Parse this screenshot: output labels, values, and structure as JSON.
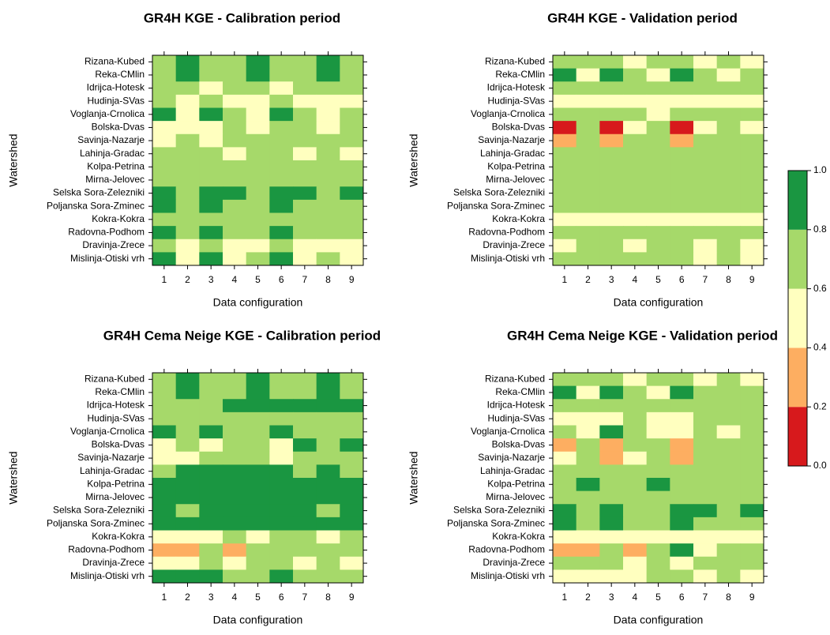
{
  "chart_data": [
    {
      "type": "heatmap",
      "title": "GR4H KGE - Calibration period",
      "x_label": "Data configuration",
      "y_label": "Watershed",
      "x": [
        1,
        2,
        3,
        4,
        5,
        6,
        7,
        8,
        9
      ],
      "y": [
        "Rizana-Kubed",
        "Reka-CMlin",
        "Idrijca-Hotesk",
        "Hudinja-SVas",
        "Voglanja-Crnolica",
        "Bolska-Dvas",
        "Savinja-Nazarje",
        "Lahinja-Gradac",
        "Kolpa-Petrina",
        "Mirna-Jelovec",
        "Selska Sora-Zelezniki",
        "Poljanska Sora-Zminec",
        "Kokra-Kokra",
        "Radovna-Podhom",
        "Dravinja-Zrece",
        "Mislinja-Otiski vrh"
      ],
      "values": [
        [
          0.7,
          0.9,
          0.7,
          0.7,
          0.9,
          0.7,
          0.7,
          0.9,
          0.7
        ],
        [
          0.7,
          0.9,
          0.7,
          0.7,
          0.9,
          0.7,
          0.7,
          0.9,
          0.7
        ],
        [
          0.7,
          0.7,
          0.5,
          0.7,
          0.7,
          0.5,
          0.7,
          0.7,
          0.7
        ],
        [
          0.7,
          0.5,
          0.7,
          0.5,
          0.5,
          0.7,
          0.5,
          0.5,
          0.5
        ],
        [
          0.9,
          0.5,
          0.9,
          0.7,
          0.5,
          0.9,
          0.7,
          0.5,
          0.7
        ],
        [
          0.5,
          0.5,
          0.5,
          0.7,
          0.5,
          0.7,
          0.7,
          0.5,
          0.7
        ],
        [
          0.5,
          0.7,
          0.5,
          0.7,
          0.7,
          0.7,
          0.7,
          0.7,
          0.7
        ],
        [
          0.7,
          0.7,
          0.7,
          0.5,
          0.7,
          0.7,
          0.5,
          0.7,
          0.5
        ],
        [
          0.7,
          0.7,
          0.7,
          0.7,
          0.7,
          0.7,
          0.7,
          0.7,
          0.7
        ],
        [
          0.7,
          0.7,
          0.7,
          0.7,
          0.7,
          0.7,
          0.7,
          0.7,
          0.7
        ],
        [
          0.9,
          0.7,
          0.9,
          0.9,
          0.7,
          0.9,
          0.9,
          0.7,
          0.9
        ],
        [
          0.9,
          0.7,
          0.9,
          0.7,
          0.7,
          0.9,
          0.7,
          0.7,
          0.7
        ],
        [
          0.7,
          0.7,
          0.7,
          0.7,
          0.7,
          0.7,
          0.7,
          0.7,
          0.7
        ],
        [
          0.9,
          0.7,
          0.9,
          0.7,
          0.7,
          0.9,
          0.7,
          0.7,
          0.7
        ],
        [
          0.7,
          0.5,
          0.7,
          0.5,
          0.5,
          0.7,
          0.5,
          0.5,
          0.5
        ],
        [
          0.9,
          0.5,
          0.9,
          0.5,
          0.7,
          0.9,
          0.5,
          0.7,
          0.5
        ]
      ]
    },
    {
      "type": "heatmap",
      "title": "GR4H KGE - Validation period",
      "x_label": "Data configuration",
      "y_label": "Watershed",
      "x": [
        1,
        2,
        3,
        4,
        5,
        6,
        7,
        8,
        9
      ],
      "y": [
        "Rizana-Kubed",
        "Reka-CMlin",
        "Idrijca-Hotesk",
        "Hudinja-SVas",
        "Voglanja-Crnolica",
        "Bolska-Dvas",
        "Savinja-Nazarje",
        "Lahinja-Gradac",
        "Kolpa-Petrina",
        "Mirna-Jelovec",
        "Selska Sora-Zelezniki",
        "Poljanska Sora-Zminec",
        "Kokra-Kokra",
        "Radovna-Podhom",
        "Dravinja-Zrece",
        "Mislinja-Otiski vrh"
      ],
      "values": [
        [
          0.7,
          0.7,
          0.7,
          0.5,
          0.7,
          0.7,
          0.5,
          0.7,
          0.5
        ],
        [
          0.9,
          0.5,
          0.9,
          0.7,
          0.5,
          0.9,
          0.7,
          0.5,
          0.7
        ],
        [
          0.7,
          0.7,
          0.7,
          0.7,
          0.7,
          0.7,
          0.7,
          0.7,
          0.7
        ],
        [
          0.5,
          0.5,
          0.5,
          0.5,
          0.5,
          0.5,
          0.5,
          0.5,
          0.5
        ],
        [
          0.7,
          0.7,
          0.7,
          0.7,
          0.5,
          0.7,
          0.7,
          0.7,
          0.7
        ],
        [
          0.1,
          0.7,
          0.1,
          0.5,
          0.7,
          0.1,
          0.5,
          0.7,
          0.5
        ],
        [
          0.3,
          0.7,
          0.3,
          0.7,
          0.7,
          0.3,
          0.7,
          0.7,
          0.7
        ],
        [
          0.7,
          0.7,
          0.7,
          0.7,
          0.7,
          0.7,
          0.7,
          0.7,
          0.7
        ],
        [
          0.7,
          0.7,
          0.7,
          0.7,
          0.7,
          0.7,
          0.7,
          0.7,
          0.7
        ],
        [
          0.7,
          0.7,
          0.7,
          0.7,
          0.7,
          0.7,
          0.7,
          0.7,
          0.7
        ],
        [
          0.7,
          0.7,
          0.7,
          0.7,
          0.7,
          0.7,
          0.7,
          0.7,
          0.7
        ],
        [
          0.7,
          0.7,
          0.7,
          0.7,
          0.7,
          0.7,
          0.7,
          0.7,
          0.7
        ],
        [
          0.5,
          0.5,
          0.5,
          0.5,
          0.5,
          0.5,
          0.5,
          0.5,
          0.5
        ],
        [
          0.7,
          0.7,
          0.7,
          0.7,
          0.7,
          0.7,
          0.7,
          0.7,
          0.7
        ],
        [
          0.5,
          0.7,
          0.7,
          0.5,
          0.7,
          0.7,
          0.5,
          0.7,
          0.5
        ],
        [
          0.7,
          0.7,
          0.7,
          0.7,
          0.7,
          0.7,
          0.5,
          0.7,
          0.5
        ]
      ]
    },
    {
      "type": "heatmap",
      "title": "GR4H Cema Neige KGE - Calibration period",
      "x_label": "Data configuration",
      "y_label": "Watershed",
      "x": [
        1,
        2,
        3,
        4,
        5,
        6,
        7,
        8,
        9
      ],
      "y": [
        "Rizana-Kubed",
        "Reka-CMlin",
        "Idrijca-Hotesk",
        "Hudinja-SVas",
        "Voglanja-Crnolica",
        "Bolska-Dvas",
        "Savinja-Nazarje",
        "Lahinja-Gradac",
        "Kolpa-Petrina",
        "Mirna-Jelovec",
        "Selska Sora-Zelezniki",
        "Poljanska Sora-Zminec",
        "Kokra-Kokra",
        "Radovna-Podhom",
        "Dravinja-Zrece",
        "Mislinja-Otiski vrh"
      ],
      "values": [
        [
          0.7,
          0.9,
          0.7,
          0.7,
          0.9,
          0.7,
          0.7,
          0.9,
          0.7
        ],
        [
          0.7,
          0.9,
          0.7,
          0.7,
          0.9,
          0.7,
          0.7,
          0.9,
          0.7
        ],
        [
          0.7,
          0.7,
          0.7,
          0.9,
          0.9,
          0.9,
          0.9,
          0.9,
          0.9
        ],
        [
          0.7,
          0.7,
          0.7,
          0.7,
          0.7,
          0.7,
          0.7,
          0.7,
          0.7
        ],
        [
          0.9,
          0.7,
          0.9,
          0.7,
          0.7,
          0.9,
          0.7,
          0.7,
          0.7
        ],
        [
          0.5,
          0.7,
          0.5,
          0.7,
          0.7,
          0.5,
          0.9,
          0.7,
          0.9
        ],
        [
          0.5,
          0.5,
          0.7,
          0.7,
          0.7,
          0.5,
          0.7,
          0.7,
          0.7
        ],
        [
          0.7,
          0.9,
          0.9,
          0.9,
          0.9,
          0.9,
          0.7,
          0.9,
          0.7
        ],
        [
          0.9,
          0.9,
          0.9,
          0.9,
          0.9,
          0.9,
          0.9,
          0.9,
          0.9
        ],
        [
          0.9,
          0.9,
          0.9,
          0.9,
          0.9,
          0.9,
          0.9,
          0.9,
          0.9
        ],
        [
          0.9,
          0.7,
          0.9,
          0.9,
          0.9,
          0.9,
          0.9,
          0.7,
          0.9
        ],
        [
          0.9,
          0.9,
          0.9,
          0.9,
          0.9,
          0.9,
          0.9,
          0.9,
          0.9
        ],
        [
          0.5,
          0.5,
          0.5,
          0.7,
          0.5,
          0.7,
          0.7,
          0.5,
          0.7
        ],
        [
          0.3,
          0.3,
          0.7,
          0.3,
          0.7,
          0.7,
          0.7,
          0.7,
          0.7
        ],
        [
          0.5,
          0.5,
          0.7,
          0.5,
          0.7,
          0.7,
          0.5,
          0.7,
          0.5
        ],
        [
          0.9,
          0.9,
          0.9,
          0.7,
          0.7,
          0.9,
          0.7,
          0.7,
          0.7
        ]
      ]
    },
    {
      "type": "heatmap",
      "title": "GR4H Cema Neige KGE - Validation period",
      "x_label": "Data configuration",
      "y_label": "Watershed",
      "x": [
        1,
        2,
        3,
        4,
        5,
        6,
        7,
        8,
        9
      ],
      "y": [
        "Rizana-Kubed",
        "Reka-CMlin",
        "Idrijca-Hotesk",
        "Hudinja-SVas",
        "Voglanja-Crnolica",
        "Bolska-Dvas",
        "Savinja-Nazarje",
        "Lahinja-Gradac",
        "Kolpa-Petrina",
        "Mirna-Jelovec",
        "Selska Sora-Zelezniki",
        "Poljanska Sora-Zminec",
        "Kokra-Kokra",
        "Radovna-Podhom",
        "Dravinja-Zrece",
        "Mislinja-Otiski vrh"
      ],
      "values": [
        [
          0.7,
          0.7,
          0.7,
          0.5,
          0.7,
          0.7,
          0.5,
          0.7,
          0.5
        ],
        [
          0.9,
          0.5,
          0.9,
          0.7,
          0.5,
          0.9,
          0.7,
          0.7,
          0.7
        ],
        [
          0.7,
          0.7,
          0.7,
          0.7,
          0.7,
          0.7,
          0.7,
          0.7,
          0.7
        ],
        [
          0.5,
          0.5,
          0.5,
          0.7,
          0.5,
          0.5,
          0.7,
          0.7,
          0.7
        ],
        [
          0.7,
          0.5,
          0.9,
          0.7,
          0.5,
          0.5,
          0.7,
          0.5,
          0.7
        ],
        [
          0.3,
          0.7,
          0.3,
          0.7,
          0.7,
          0.3,
          0.7,
          0.7,
          0.7
        ],
        [
          0.5,
          0.7,
          0.3,
          0.5,
          0.7,
          0.3,
          0.7,
          0.7,
          0.7
        ],
        [
          0.7,
          0.7,
          0.7,
          0.7,
          0.7,
          0.7,
          0.7,
          0.7,
          0.7
        ],
        [
          0.7,
          0.9,
          0.7,
          0.7,
          0.9,
          0.7,
          0.7,
          0.7,
          0.7
        ],
        [
          0.7,
          0.7,
          0.7,
          0.7,
          0.7,
          0.7,
          0.7,
          0.7,
          0.7
        ],
        [
          0.9,
          0.7,
          0.9,
          0.7,
          0.7,
          0.9,
          0.9,
          0.7,
          0.9
        ],
        [
          0.9,
          0.7,
          0.9,
          0.7,
          0.7,
          0.9,
          0.7,
          0.7,
          0.7
        ],
        [
          0.5,
          0.5,
          0.5,
          0.5,
          0.5,
          0.5,
          0.5,
          0.5,
          0.5
        ],
        [
          0.3,
          0.3,
          0.7,
          0.3,
          0.7,
          0.9,
          0.5,
          0.7,
          0.7
        ],
        [
          0.7,
          0.7,
          0.7,
          0.5,
          0.7,
          0.5,
          0.7,
          0.7,
          0.7
        ],
        [
          0.5,
          0.5,
          0.5,
          0.5,
          0.7,
          0.7,
          0.5,
          0.7,
          0.5
        ]
      ]
    }
  ],
  "colorbar": {
    "bins": [
      0,
      0.2,
      0.4,
      0.6,
      0.8,
      1
    ],
    "colors": [
      "#d7191c",
      "#fdae61",
      "#ffffbf",
      "#a6d96a",
      "#1a9641"
    ],
    "ticks": [
      {
        "value": 0,
        "label": "0.0"
      },
      {
        "value": 0.2,
        "label": "0.2"
      },
      {
        "value": 0.4,
        "label": "0.4"
      },
      {
        "value": 0.6,
        "label": "0.6"
      },
      {
        "value": 0.8,
        "label": "0.8"
      },
      {
        "value": 1,
        "label": "1.0"
      }
    ]
  }
}
